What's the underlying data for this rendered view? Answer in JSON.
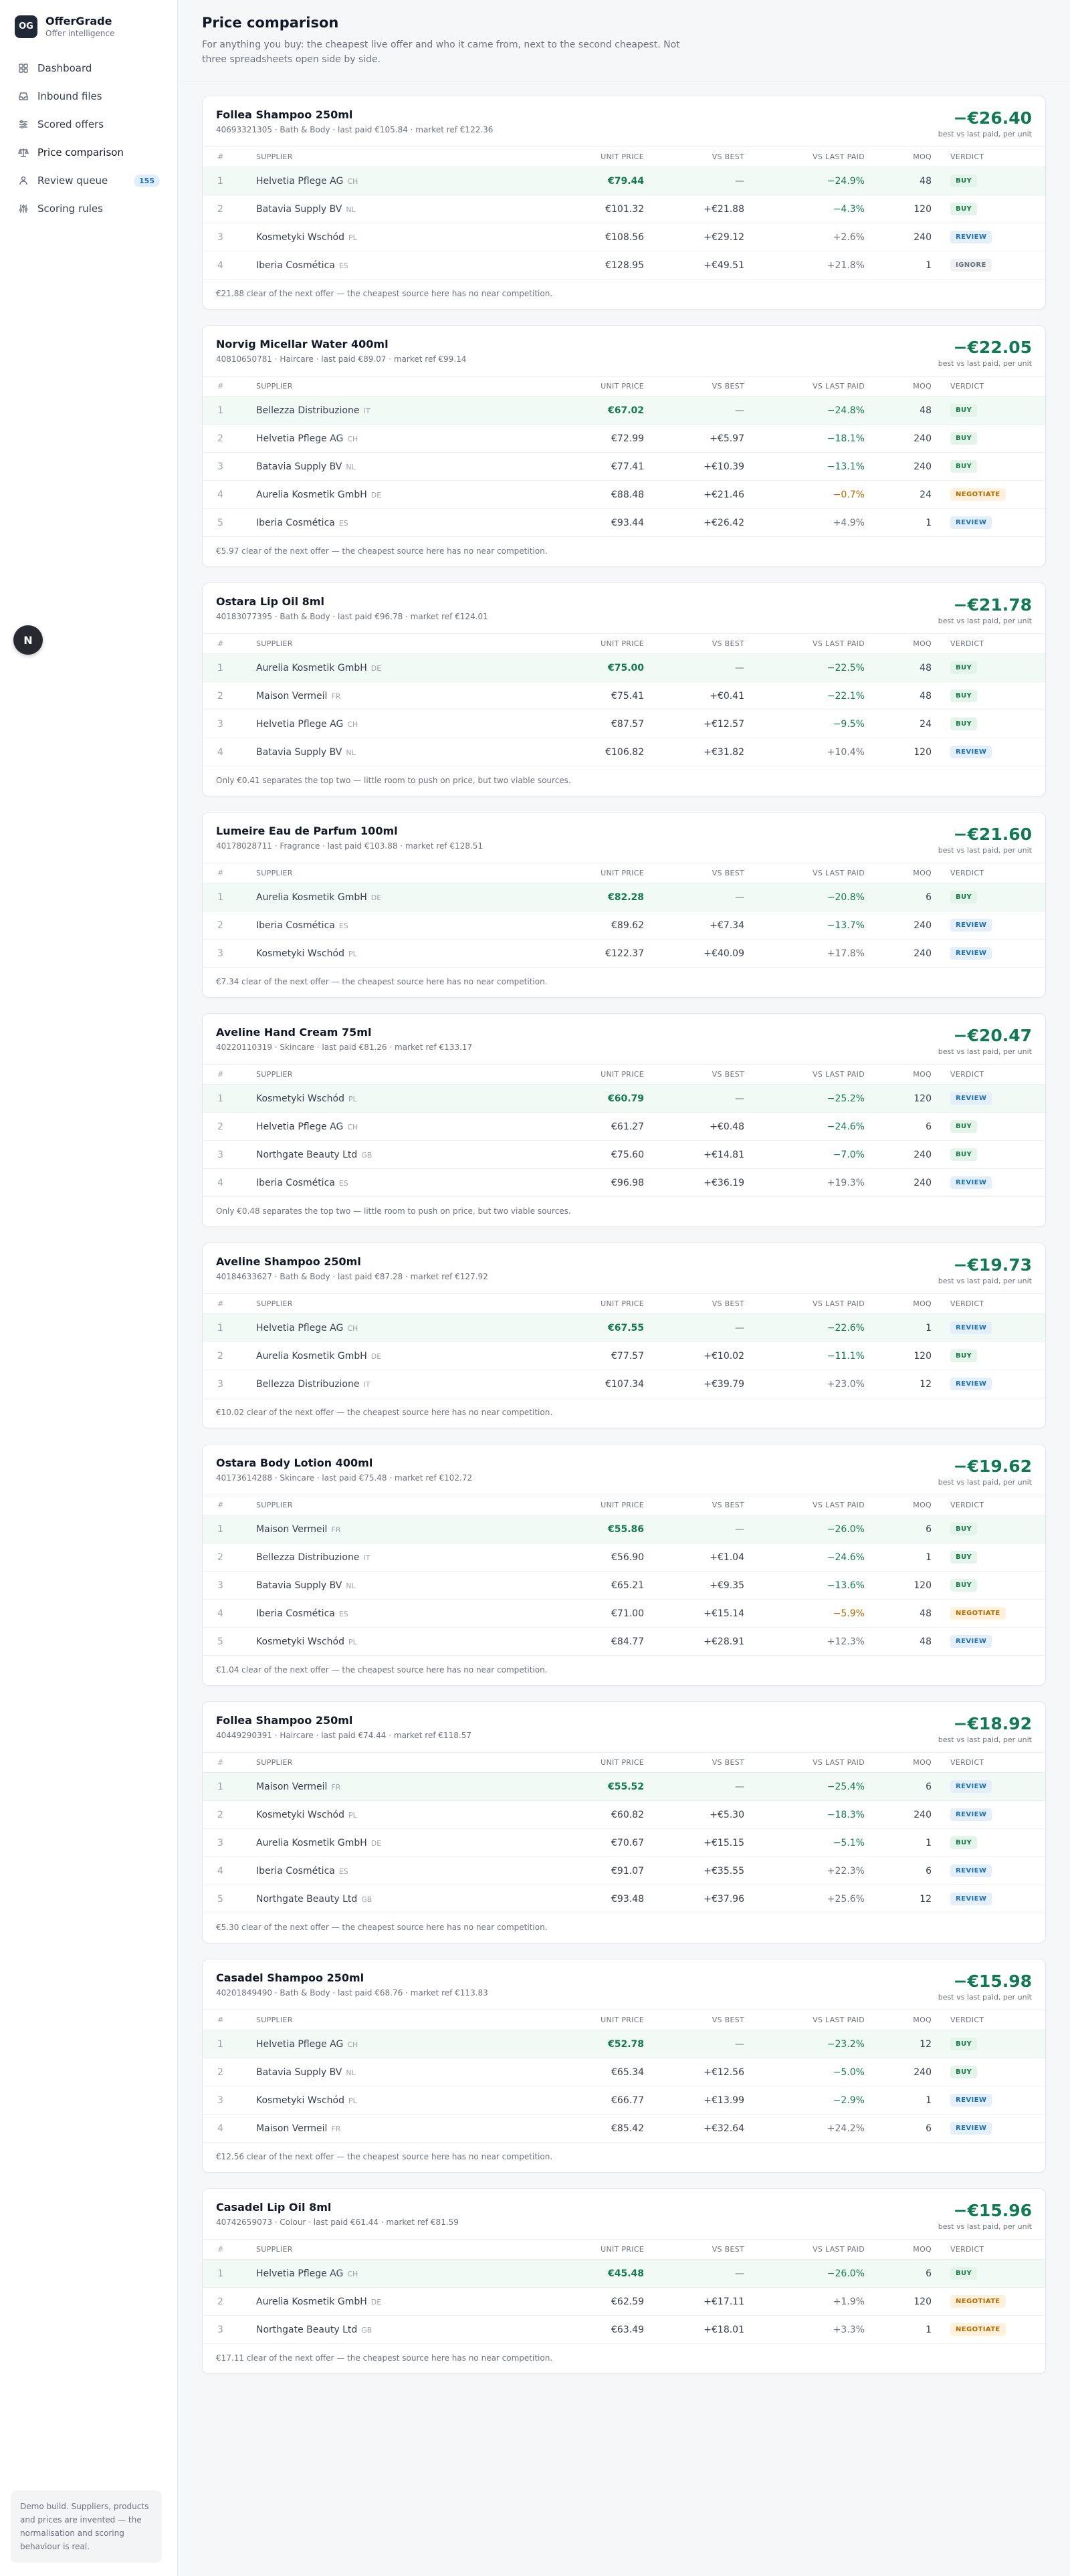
{
  "app": {
    "logo": "OG",
    "name": "OfferGrade",
    "subtitle": "Offer intelligence"
  },
  "nav": [
    {
      "label": "Dashboard",
      "icon": "grid-icon"
    },
    {
      "label": "Inbound files",
      "icon": "inbox-icon"
    },
    {
      "label": "Scored offers",
      "icon": "sliders-icon"
    },
    {
      "label": "Price comparison",
      "icon": "scale-icon",
      "active": true
    },
    {
      "label": "Review queue",
      "icon": "users-icon",
      "badge": "155"
    },
    {
      "label": "Scoring rules",
      "icon": "rules-icon"
    }
  ],
  "floating_button": "N",
  "footer_note": "Demo build. Suppliers, products and prices are invented — the normalisation and scoring behaviour is real.",
  "page": {
    "title": "Price comparison",
    "description": "For anything you buy: the cheapest live offer and who it came from, next to the second cheapest. Not three spreadsheets open side by side."
  },
  "table_headers": {
    "rank": "#",
    "supplier": "Supplier",
    "unit_price": "Unit price",
    "vs_best": "vs best",
    "vs_last_paid": "vs last paid",
    "moq": "MOQ",
    "verdict": "Verdict"
  },
  "saving_label": "best vs last paid, per unit",
  "colors": {
    "accent_green": "#127a52",
    "buy": "#1a7a45",
    "review": "#1d6fb8",
    "negotiate": "#b36b00"
  },
  "products": [
    {
      "name": "Follea Shampoo 250ml",
      "meta": "40693321305 · Bath & Body · last paid €105.84 · market ref €122.36",
      "saving": "−€26.40",
      "rows": [
        {
          "rank": "1",
          "supplier": "Helvetia Pflege AG",
          "cc": "CH",
          "unit": "€79.44",
          "vs_best": "—",
          "vs_last": "−24.9%",
          "moq": "48",
          "verdict": "BUY"
        },
        {
          "rank": "2",
          "supplier": "Batavia Supply BV",
          "cc": "NL",
          "unit": "€101.32",
          "vs_best": "+€21.88",
          "vs_last": "−4.3%",
          "moq": "120",
          "verdict": "BUY"
        },
        {
          "rank": "3",
          "supplier": "Kosmetyki Wschód",
          "cc": "PL",
          "unit": "€108.56",
          "vs_best": "+€29.12",
          "vs_last": "+2.6%",
          "moq": "240",
          "verdict": "REVIEW"
        },
        {
          "rank": "4",
          "supplier": "Iberia Cosmética",
          "cc": "ES",
          "unit": "€128.95",
          "vs_best": "+€49.51",
          "vs_last": "+21.8%",
          "moq": "1",
          "verdict": "IGNORE"
        }
      ],
      "note": "€21.88 clear of the next offer — the cheapest source here has no near competition."
    },
    {
      "name": "Norvig Micellar Water 400ml",
      "meta": "40810650781 · Haircare · last paid €89.07 · market ref €99.14",
      "saving": "−€22.05",
      "rows": [
        {
          "rank": "1",
          "supplier": "Bellezza Distribuzione",
          "cc": "IT",
          "unit": "€67.02",
          "vs_best": "—",
          "vs_last": "−24.8%",
          "moq": "48",
          "verdict": "BUY"
        },
        {
          "rank": "2",
          "supplier": "Helvetia Pflege AG",
          "cc": "CH",
          "unit": "€72.99",
          "vs_best": "+€5.97",
          "vs_last": "−18.1%",
          "moq": "240",
          "verdict": "BUY"
        },
        {
          "rank": "3",
          "supplier": "Batavia Supply BV",
          "cc": "NL",
          "unit": "€77.41",
          "vs_best": "+€10.39",
          "vs_last": "−13.1%",
          "moq": "240",
          "verdict": "BUY"
        },
        {
          "rank": "4",
          "supplier": "Aurelia Kosmetik GmbH",
          "cc": "DE",
          "unit": "€88.48",
          "vs_best": "+€21.46",
          "vs_last": "−0.7%",
          "moq": "24",
          "verdict": "NEGOTIATE"
        },
        {
          "rank": "5",
          "supplier": "Iberia Cosmética",
          "cc": "ES",
          "unit": "€93.44",
          "vs_best": "+€26.42",
          "vs_last": "+4.9%",
          "moq": "1",
          "verdict": "REVIEW"
        }
      ],
      "note": "€5.97 clear of the next offer — the cheapest source here has no near competition."
    },
    {
      "name": "Ostara Lip Oil 8ml",
      "meta": "40183077395 · Bath & Body · last paid €96.78 · market ref €124.01",
      "saving": "−€21.78",
      "rows": [
        {
          "rank": "1",
          "supplier": "Aurelia Kosmetik GmbH",
          "cc": "DE",
          "unit": "€75.00",
          "vs_best": "—",
          "vs_last": "−22.5%",
          "moq": "48",
          "verdict": "BUY"
        },
        {
          "rank": "2",
          "supplier": "Maison Vermeil",
          "cc": "FR",
          "unit": "€75.41",
          "vs_best": "+€0.41",
          "vs_last": "−22.1%",
          "moq": "48",
          "verdict": "BUY"
        },
        {
          "rank": "3",
          "supplier": "Helvetia Pflege AG",
          "cc": "CH",
          "unit": "€87.57",
          "vs_best": "+€12.57",
          "vs_last": "−9.5%",
          "moq": "24",
          "verdict": "BUY"
        },
        {
          "rank": "4",
          "supplier": "Batavia Supply BV",
          "cc": "NL",
          "unit": "€106.82",
          "vs_best": "+€31.82",
          "vs_last": "+10.4%",
          "moq": "120",
          "verdict": "REVIEW"
        }
      ],
      "note": "Only €0.41 separates the top two — little room to push on price, but two viable sources."
    },
    {
      "name": "Lumeire Eau de Parfum 100ml",
      "meta": "40178028711 · Fragrance · last paid €103.88 · market ref €128.51",
      "saving": "−€21.60",
      "rows": [
        {
          "rank": "1",
          "supplier": "Aurelia Kosmetik GmbH",
          "cc": "DE",
          "unit": "€82.28",
          "vs_best": "—",
          "vs_last": "−20.8%",
          "moq": "6",
          "verdict": "BUY"
        },
        {
          "rank": "2",
          "supplier": "Iberia Cosmética",
          "cc": "ES",
          "unit": "€89.62",
          "vs_best": "+€7.34",
          "vs_last": "−13.7%",
          "moq": "240",
          "verdict": "REVIEW"
        },
        {
          "rank": "3",
          "supplier": "Kosmetyki Wschód",
          "cc": "PL",
          "unit": "€122.37",
          "vs_best": "+€40.09",
          "vs_last": "+17.8%",
          "moq": "240",
          "verdict": "REVIEW"
        }
      ],
      "note": "€7.34 clear of the next offer — the cheapest source here has no near competition."
    },
    {
      "name": "Aveline Hand Cream 75ml",
      "meta": "40220110319 · Skincare · last paid €81.26 · market ref €133.17",
      "saving": "−€20.47",
      "rows": [
        {
          "rank": "1",
          "supplier": "Kosmetyki Wschód",
          "cc": "PL",
          "unit": "€60.79",
          "vs_best": "—",
          "vs_last": "−25.2%",
          "moq": "120",
          "verdict": "REVIEW"
        },
        {
          "rank": "2",
          "supplier": "Helvetia Pflege AG",
          "cc": "CH",
          "unit": "€61.27",
          "vs_best": "+€0.48",
          "vs_last": "−24.6%",
          "moq": "6",
          "verdict": "BUY"
        },
        {
          "rank": "3",
          "supplier": "Northgate Beauty Ltd",
          "cc": "GB",
          "unit": "€75.60",
          "vs_best": "+€14.81",
          "vs_last": "−7.0%",
          "moq": "240",
          "verdict": "BUY"
        },
        {
          "rank": "4",
          "supplier": "Iberia Cosmética",
          "cc": "ES",
          "unit": "€96.98",
          "vs_best": "+€36.19",
          "vs_last": "+19.3%",
          "moq": "240",
          "verdict": "REVIEW"
        }
      ],
      "note": "Only €0.48 separates the top two — little room to push on price, but two viable sources."
    },
    {
      "name": "Aveline Shampoo 250ml",
      "meta": "40184633627 · Bath & Body · last paid €87.28 · market ref €127.92",
      "saving": "−€19.73",
      "rows": [
        {
          "rank": "1",
          "supplier": "Helvetia Pflege AG",
          "cc": "CH",
          "unit": "€67.55",
          "vs_best": "—",
          "vs_last": "−22.6%",
          "moq": "1",
          "verdict": "REVIEW"
        },
        {
          "rank": "2",
          "supplier": "Aurelia Kosmetik GmbH",
          "cc": "DE",
          "unit": "€77.57",
          "vs_best": "+€10.02",
          "vs_last": "−11.1%",
          "moq": "120",
          "verdict": "BUY"
        },
        {
          "rank": "3",
          "supplier": "Bellezza Distribuzione",
          "cc": "IT",
          "unit": "€107.34",
          "vs_best": "+€39.79",
          "vs_last": "+23.0%",
          "moq": "12",
          "verdict": "REVIEW"
        }
      ],
      "note": "€10.02 clear of the next offer — the cheapest source here has no near competition."
    },
    {
      "name": "Ostara Body Lotion 400ml",
      "meta": "40173614288 · Skincare · last paid €75.48 · market ref €102.72",
      "saving": "−€19.62",
      "rows": [
        {
          "rank": "1",
          "supplier": "Maison Vermeil",
          "cc": "FR",
          "unit": "€55.86",
          "vs_best": "—",
          "vs_last": "−26.0%",
          "moq": "6",
          "verdict": "BUY"
        },
        {
          "rank": "2",
          "supplier": "Bellezza Distribuzione",
          "cc": "IT",
          "unit": "€56.90",
          "vs_best": "+€1.04",
          "vs_last": "−24.6%",
          "moq": "1",
          "verdict": "BUY"
        },
        {
          "rank": "3",
          "supplier": "Batavia Supply BV",
          "cc": "NL",
          "unit": "€65.21",
          "vs_best": "+€9.35",
          "vs_last": "−13.6%",
          "moq": "120",
          "verdict": "BUY"
        },
        {
          "rank": "4",
          "supplier": "Iberia Cosmética",
          "cc": "ES",
          "unit": "€71.00",
          "vs_best": "+€15.14",
          "vs_last": "−5.9%",
          "moq": "48",
          "verdict": "NEGOTIATE"
        },
        {
          "rank": "5",
          "supplier": "Kosmetyki Wschód",
          "cc": "PL",
          "unit": "€84.77",
          "vs_best": "+€28.91",
          "vs_last": "+12.3%",
          "moq": "48",
          "verdict": "REVIEW"
        }
      ],
      "note": "€1.04 clear of the next offer — the cheapest source here has no near competition."
    },
    {
      "name": "Follea Shampoo 250ml",
      "meta": "40449290391 · Haircare · last paid €74.44 · market ref €118.57",
      "saving": "−€18.92",
      "rows": [
        {
          "rank": "1",
          "supplier": "Maison Vermeil",
          "cc": "FR",
          "unit": "€55.52",
          "vs_best": "—",
          "vs_last": "−25.4%",
          "moq": "6",
          "verdict": "REVIEW"
        },
        {
          "rank": "2",
          "supplier": "Kosmetyki Wschód",
          "cc": "PL",
          "unit": "€60.82",
          "vs_best": "+€5.30",
          "vs_last": "−18.3%",
          "moq": "240",
          "verdict": "REVIEW"
        },
        {
          "rank": "3",
          "supplier": "Aurelia Kosmetik GmbH",
          "cc": "DE",
          "unit": "€70.67",
          "vs_best": "+€15.15",
          "vs_last": "−5.1%",
          "moq": "1",
          "verdict": "BUY"
        },
        {
          "rank": "4",
          "supplier": "Iberia Cosmética",
          "cc": "ES",
          "unit": "€91.07",
          "vs_best": "+€35.55",
          "vs_last": "+22.3%",
          "moq": "6",
          "verdict": "REVIEW"
        },
        {
          "rank": "5",
          "supplier": "Northgate Beauty Ltd",
          "cc": "GB",
          "unit": "€93.48",
          "vs_best": "+€37.96",
          "vs_last": "+25.6%",
          "moq": "12",
          "verdict": "REVIEW"
        }
      ],
      "note": "€5.30 clear of the next offer — the cheapest source here has no near competition."
    },
    {
      "name": "Casadel Shampoo 250ml",
      "meta": "40201849490 · Bath & Body · last paid €68.76 · market ref €113.83",
      "saving": "−€15.98",
      "rows": [
        {
          "rank": "1",
          "supplier": "Helvetia Pflege AG",
          "cc": "CH",
          "unit": "€52.78",
          "vs_best": "—",
          "vs_last": "−23.2%",
          "moq": "12",
          "verdict": "BUY"
        },
        {
          "rank": "2",
          "supplier": "Batavia Supply BV",
          "cc": "NL",
          "unit": "€65.34",
          "vs_best": "+€12.56",
          "vs_last": "−5.0%",
          "moq": "240",
          "verdict": "BUY"
        },
        {
          "rank": "3",
          "supplier": "Kosmetyki Wschód",
          "cc": "PL",
          "unit": "€66.77",
          "vs_best": "+€13.99",
          "vs_last": "−2.9%",
          "moq": "1",
          "verdict": "REVIEW"
        },
        {
          "rank": "4",
          "supplier": "Maison Vermeil",
          "cc": "FR",
          "unit": "€85.42",
          "vs_best": "+€32.64",
          "vs_last": "+24.2%",
          "moq": "6",
          "verdict": "REVIEW"
        }
      ],
      "note": "€12.56 clear of the next offer — the cheapest source here has no near competition."
    },
    {
      "name": "Casadel Lip Oil 8ml",
      "meta": "40742659073 · Colour · last paid €61.44 · market ref €81.59",
      "saving": "−€15.96",
      "rows": [
        {
          "rank": "1",
          "supplier": "Helvetia Pflege AG",
          "cc": "CH",
          "unit": "€45.48",
          "vs_best": "—",
          "vs_last": "−26.0%",
          "moq": "6",
          "verdict": "BUY"
        },
        {
          "rank": "2",
          "supplier": "Aurelia Kosmetik GmbH",
          "cc": "DE",
          "unit": "€62.59",
          "vs_best": "+€17.11",
          "vs_last": "+1.9%",
          "moq": "120",
          "verdict": "NEGOTIATE"
        },
        {
          "rank": "3",
          "supplier": "Northgate Beauty Ltd",
          "cc": "GB",
          "unit": "€63.49",
          "vs_best": "+€18.01",
          "vs_last": "+3.3%",
          "moq": "1",
          "verdict": "NEGOTIATE"
        }
      ],
      "note": "€17.11 clear of the next offer — the cheapest source here has no near competition."
    }
  ]
}
